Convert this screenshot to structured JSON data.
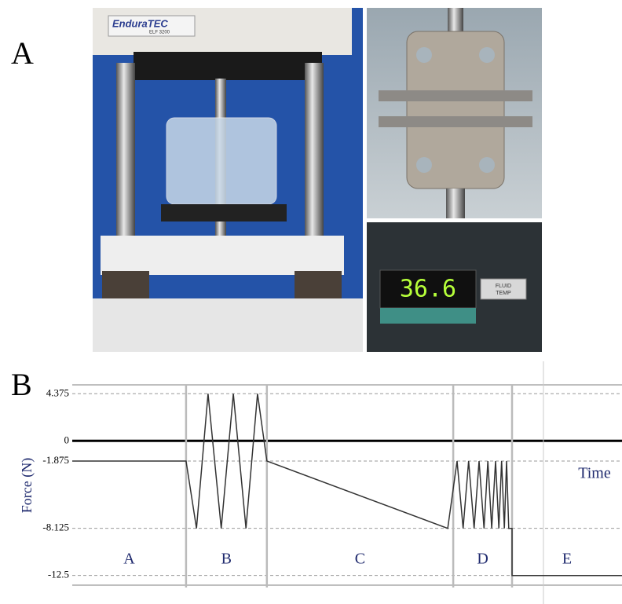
{
  "panel_a": {
    "label": "A",
    "brand": "EnduraTEC",
    "model": "ELF 3200",
    "display": "36.6",
    "display_label": [
      "FLUID",
      "TEMP"
    ]
  },
  "panel_b": {
    "label": "B"
  },
  "chart_data": {
    "type": "line",
    "y_label": "Force (N)",
    "annotation": "Time",
    "color": "#333333",
    "x": [
      0,
      20.7,
      22.6,
      24.7,
      27.1,
      29.3,
      31.6,
      33.7,
      35.4,
      68.3,
      70,
      71.1,
      72.1,
      73.1,
      74,
      74.9,
      75.6,
      76.3,
      77,
      77.6,
      78.1,
      78.6,
      79,
      79.4,
      80,
      80,
      100
    ],
    "values": [
      -1.875,
      -1.875,
      -8.125,
      4.375,
      -8.125,
      4.375,
      -8.125,
      4.375,
      -1.875,
      -8.125,
      -1.875,
      -8.125,
      -1.875,
      -8.125,
      -1.875,
      -8.125,
      -1.875,
      -8.125,
      -1.875,
      -8.125,
      -1.875,
      -8.125,
      -1.875,
      -8.125,
      -8.125,
      -12.5,
      -12.5
    ],
    "xlim": [
      0,
      100
    ],
    "ylim": [
      -13.4,
      5.2
    ],
    "yticks": [
      4.375,
      0,
      -1.875,
      -8.125,
      -12.5
    ],
    "grid": true,
    "phases": [
      "A",
      "B",
      "C",
      "D",
      "E"
    ],
    "phase_boundaries": [
      20.7,
      35.4,
      69.3,
      80
    ],
    "time_marker": 85.7
  }
}
